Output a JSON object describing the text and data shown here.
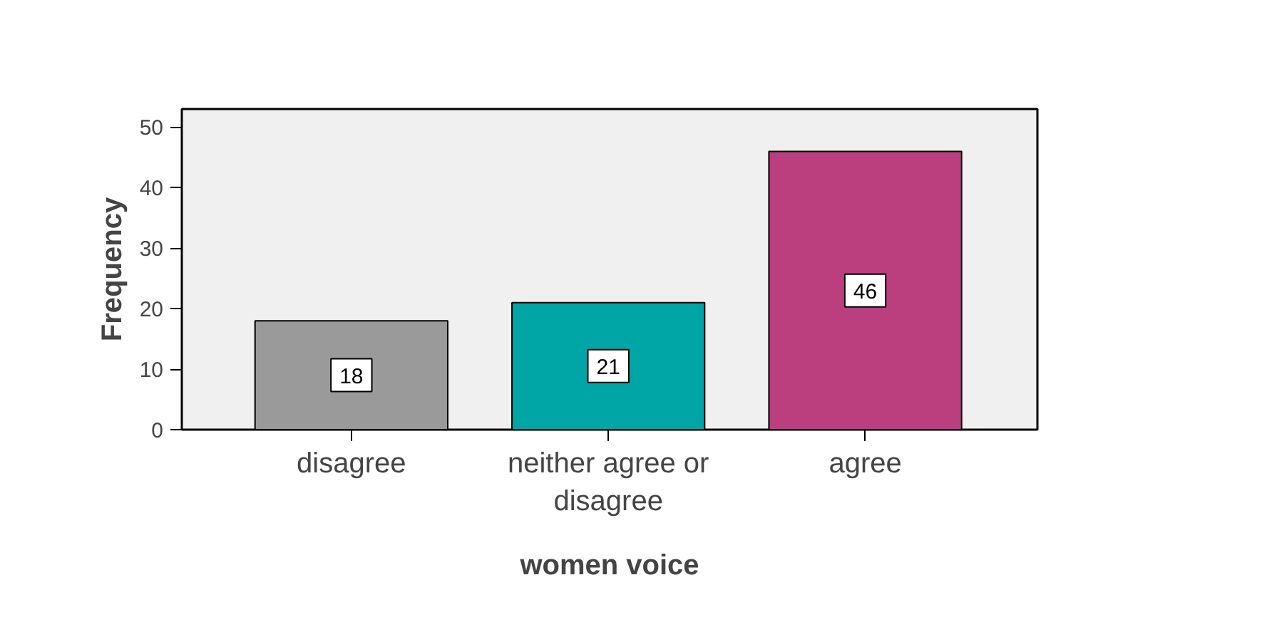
{
  "chart_data": {
    "type": "bar",
    "xlabel": "women voice",
    "ylabel": "Frequency",
    "categories": [
      "disagree",
      "neither agree or disagree",
      "agree"
    ],
    "values": [
      18,
      21,
      46
    ],
    "colors": [
      "#9a9a9a",
      "#00a5a5",
      "#bb3f7f"
    ],
    "ylim": [
      0,
      53
    ],
    "yticks": [
      0,
      10,
      20,
      30,
      40,
      50
    ],
    "data_labels": true,
    "grid": false
  }
}
